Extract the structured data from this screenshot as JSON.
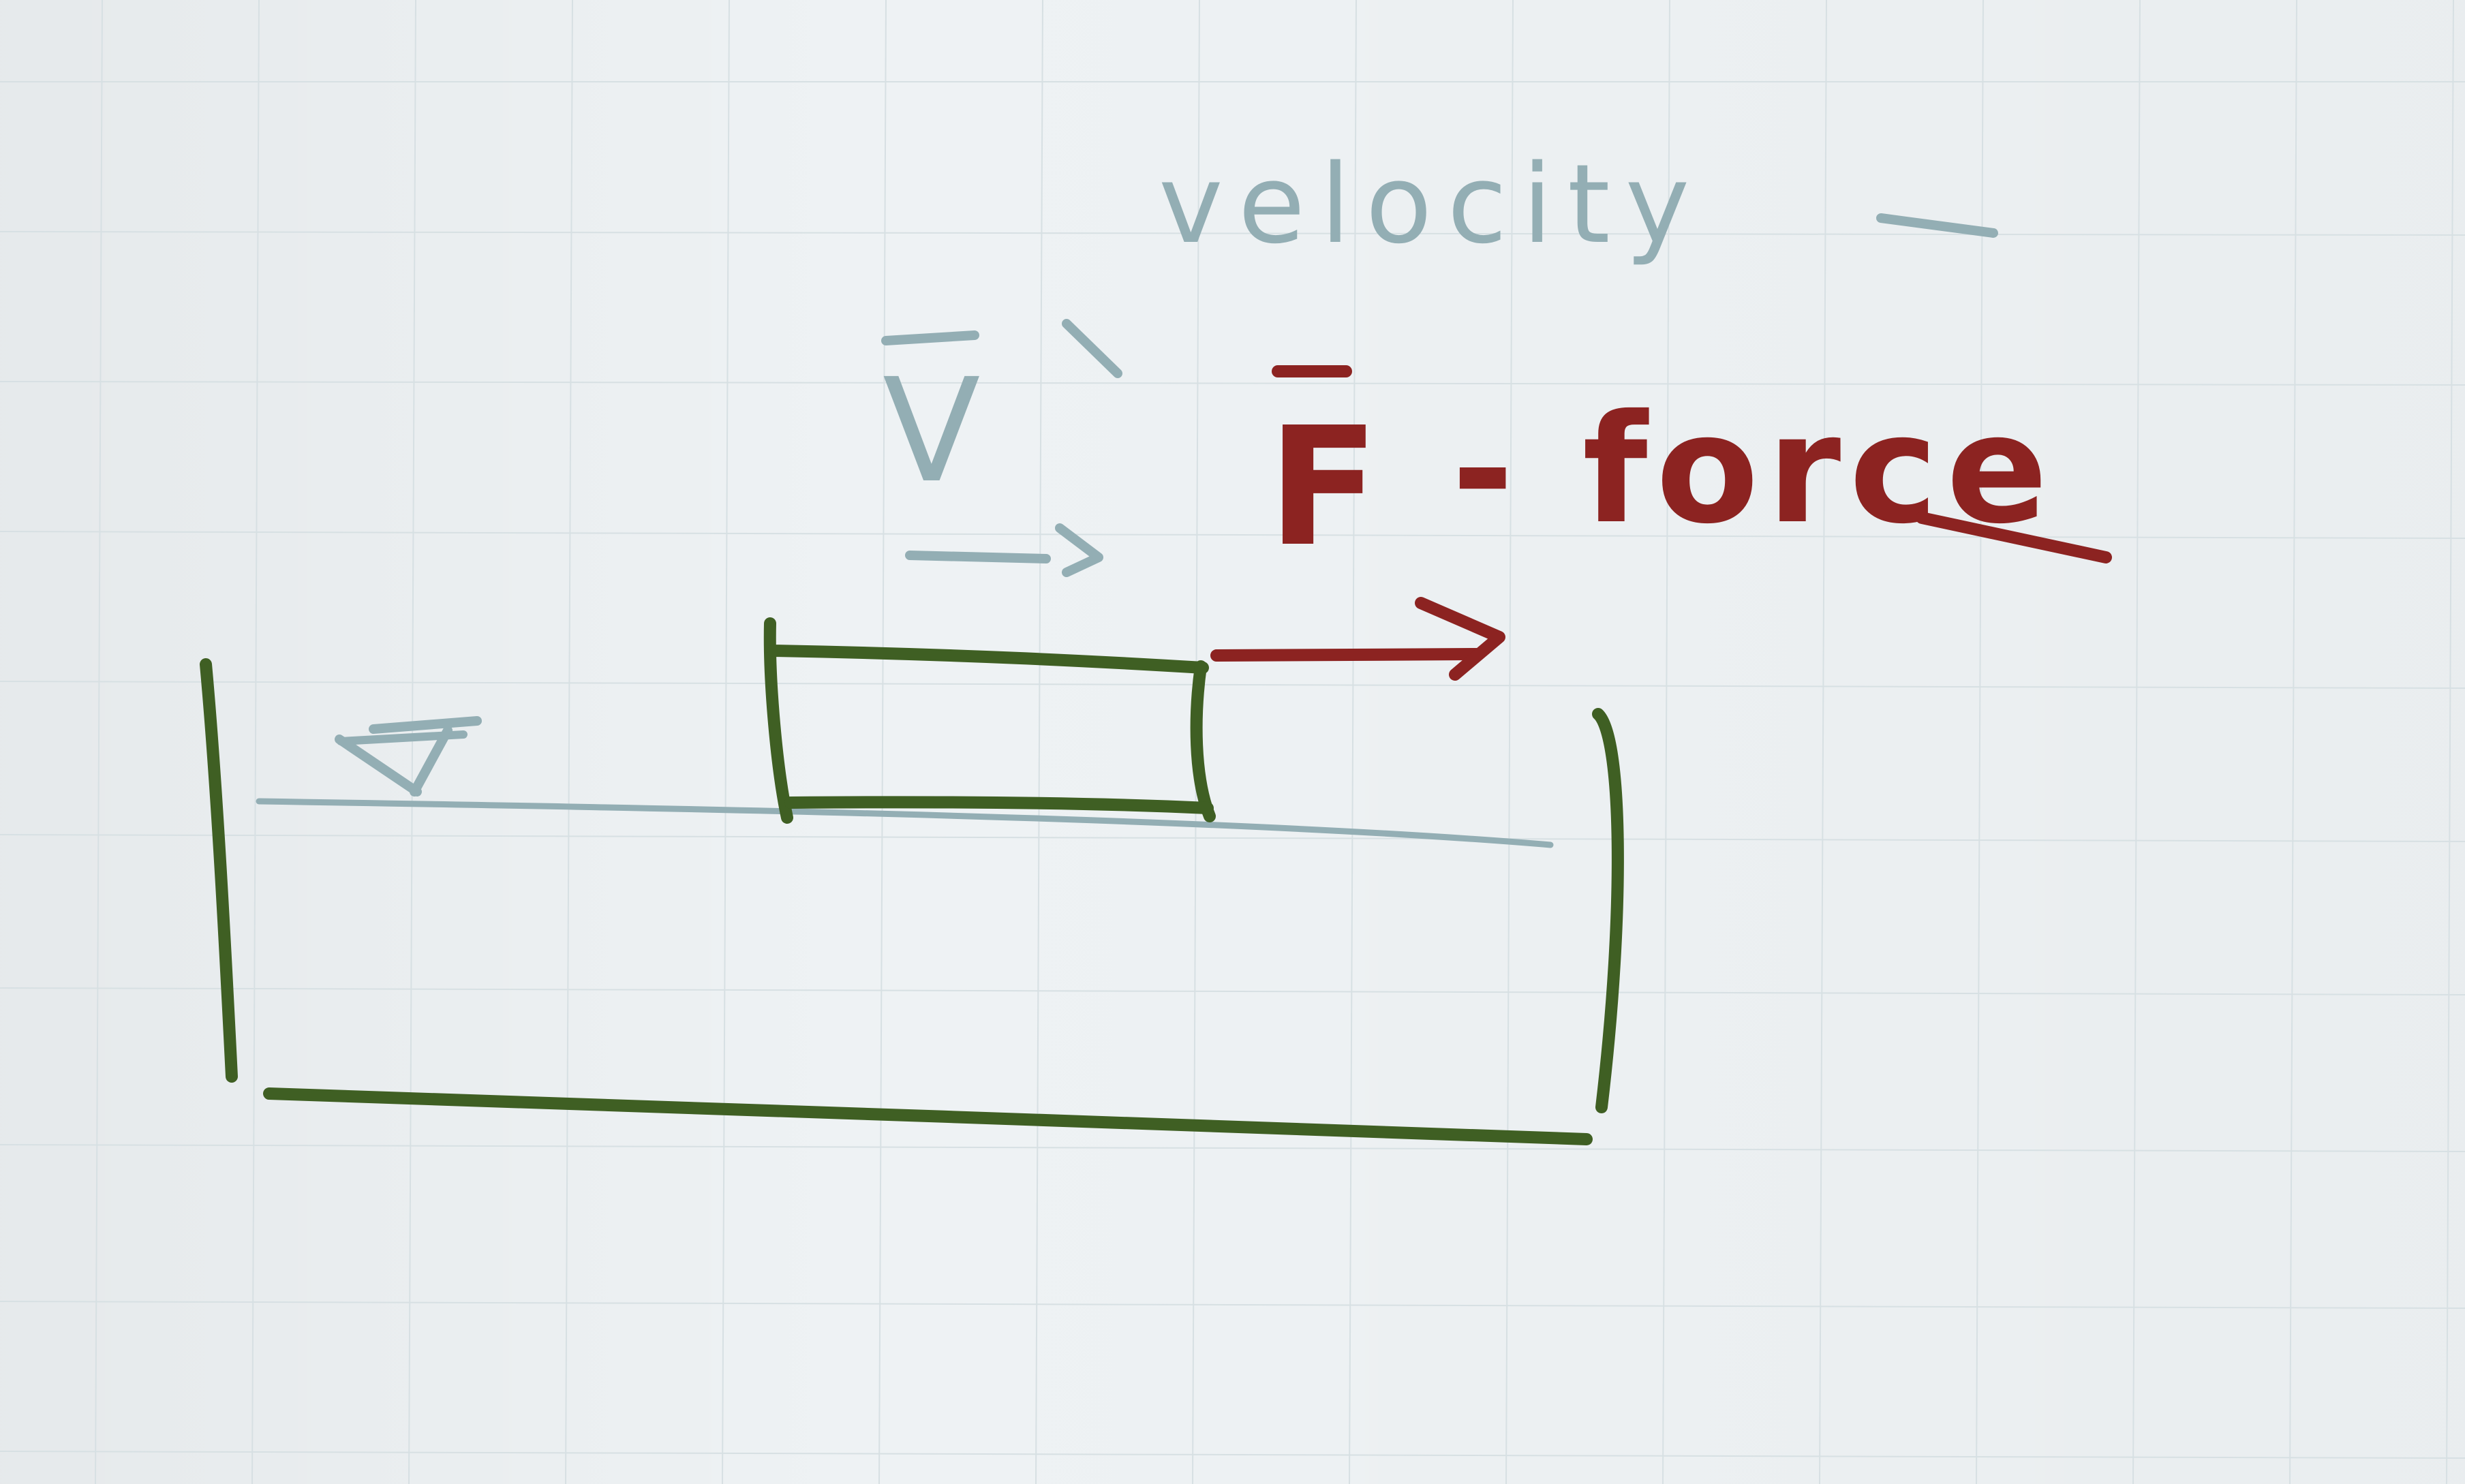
{
  "labels": {
    "velocity_word": "velocity",
    "velocity_symbol": "V",
    "force_symbol": "F",
    "force_word": "- force"
  },
  "colors": {
    "paper": "#eef2f4",
    "grid": "#d7e0e3",
    "green_ink": "#3f5f23",
    "blue_ink": "#93aeb4",
    "red_ink": "#8c2321"
  },
  "icons": {
    "free_surface_marker": "inverted-triangle-icon",
    "velocity_arrow": "arrow-right-icon",
    "force_arrow": "arrow-right-icon"
  }
}
